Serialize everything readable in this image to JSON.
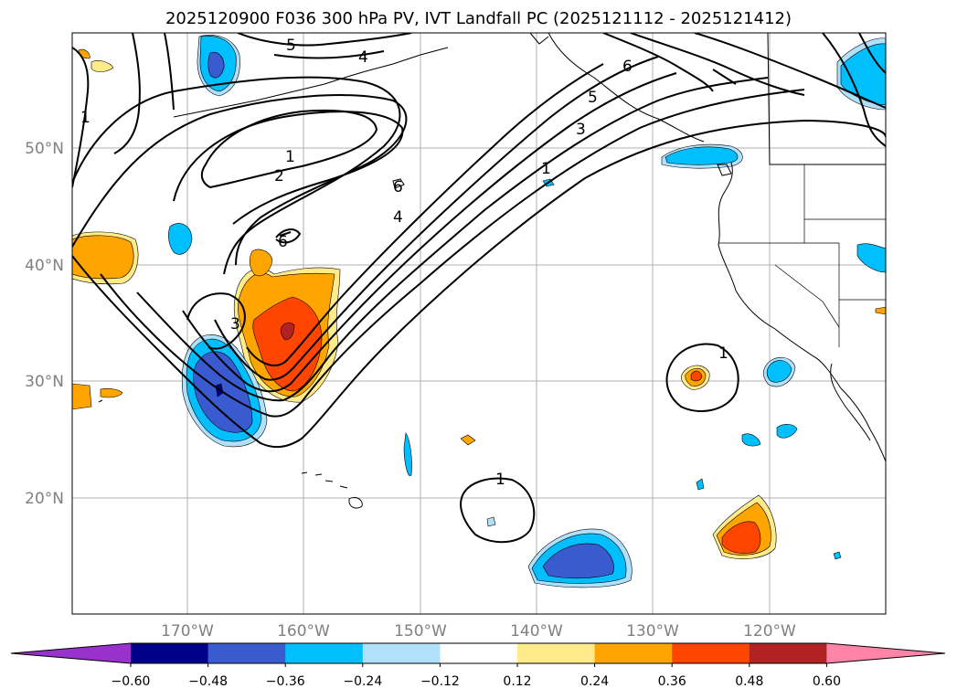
{
  "title": "2025120900 F036 300 hPa PV, IVT Landfall PC (2025121112 - 2025121412)",
  "lat_labels": [
    "50°N",
    "40°N",
    "30°N",
    "20°N"
  ],
  "lon_labels": [
    "170°W",
    "160°W",
    "150°W",
    "140°W",
    "130°W",
    "120°W"
  ],
  "contour_labels": [
    "1",
    "2",
    "3",
    "4",
    "5",
    "6",
    "6",
    "1",
    "1",
    "1",
    "3",
    "4",
    "5",
    "6",
    "1"
  ],
  "colorbar": {
    "tick_labels": [
      "−0.60",
      "−0.48",
      "−0.36",
      "−0.24",
      "−0.12",
      "0.12",
      "0.24",
      "0.36",
      "0.48",
      "0.60"
    ],
    "colors": [
      "#9932cc",
      "#00008b",
      "#3a5bd0",
      "#00bfff",
      "#b0e0fa",
      "#ffffff",
      "#ffeb8a",
      "#ffa500",
      "#ff4500",
      "#b22222",
      "#ff85a8"
    ]
  }
}
